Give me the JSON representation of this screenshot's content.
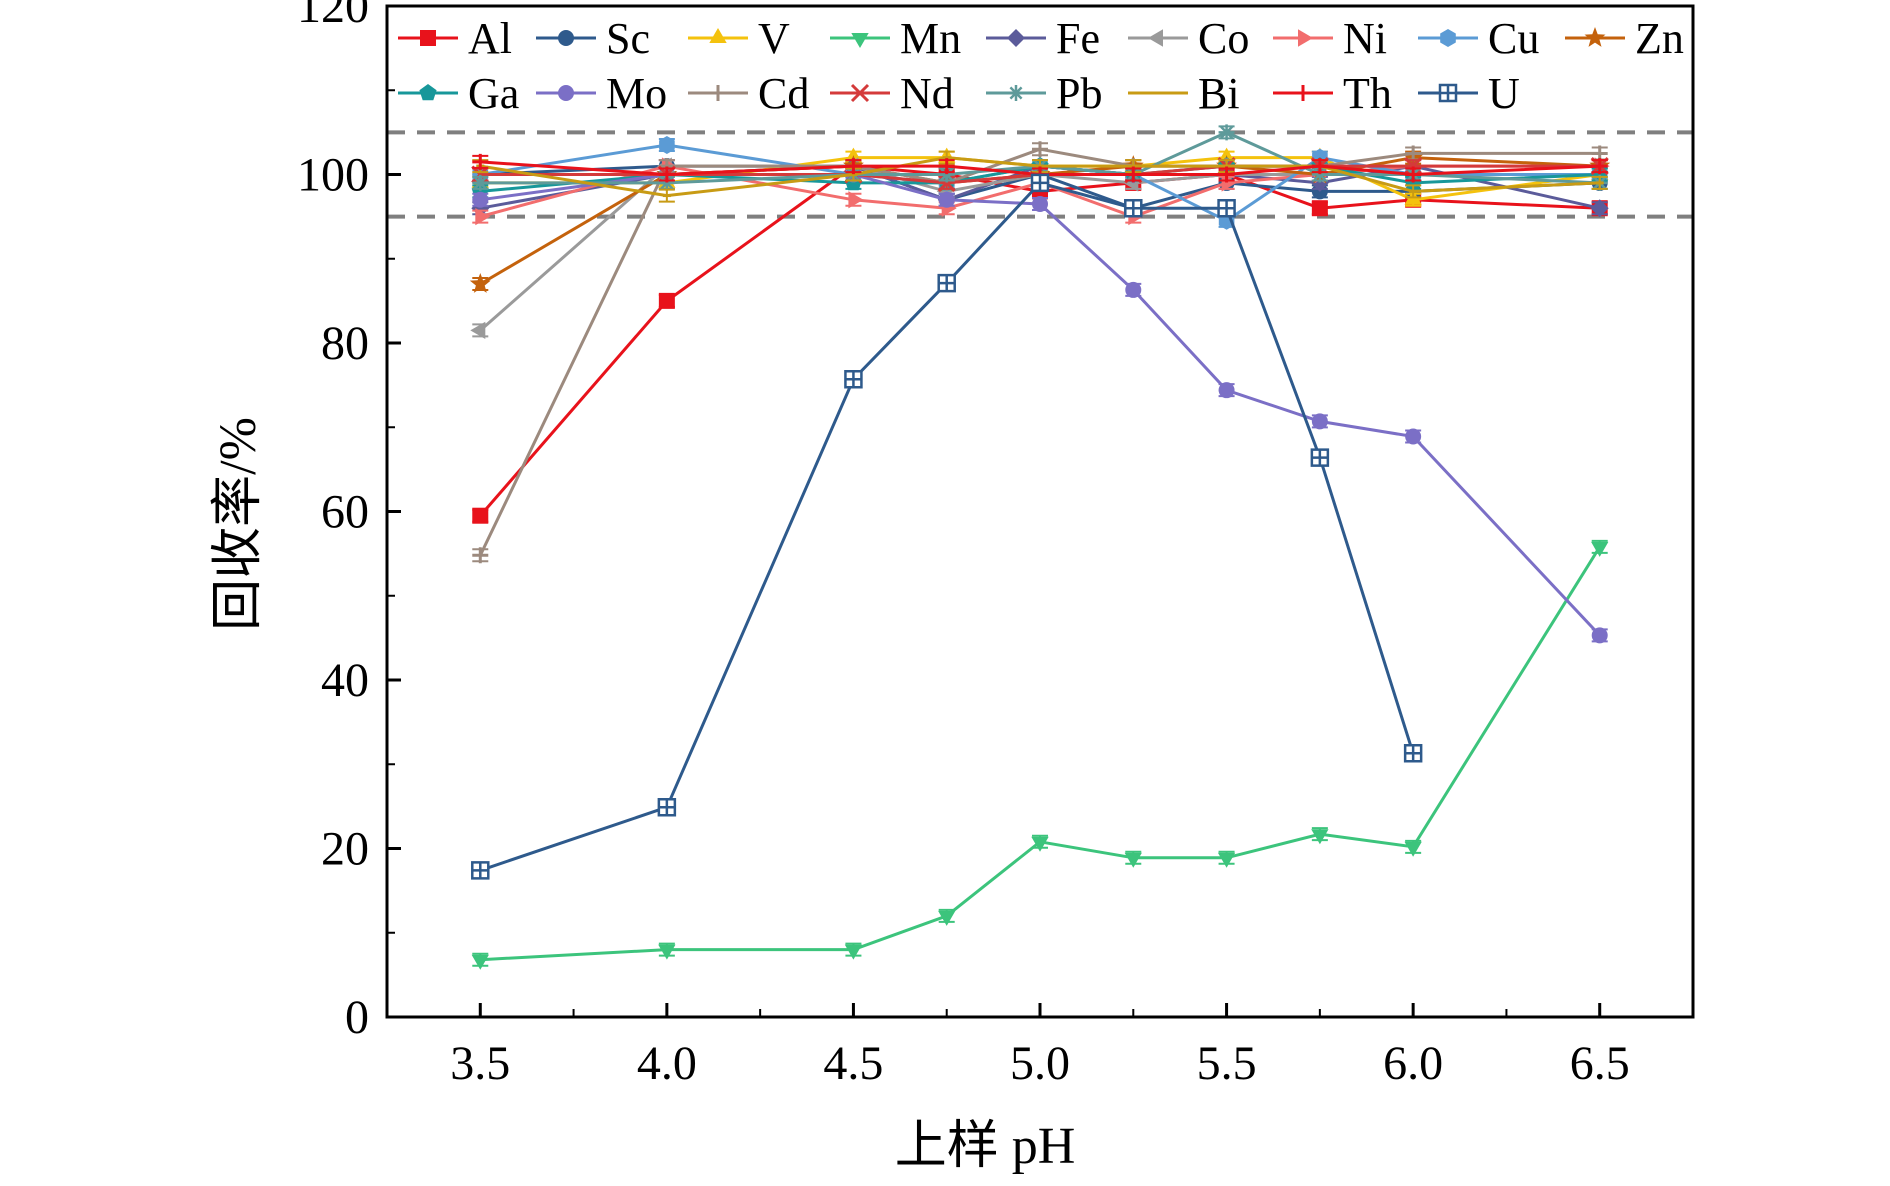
{
  "chart_data": {
    "type": "line",
    "xlabel": "上样 pH",
    "ylabel": "回收率/%",
    "xlim": [
      3.25,
      6.75
    ],
    "ylim": [
      0,
      120
    ],
    "x_ticks": [
      "3.5",
      "4.0",
      "4.5",
      "5.0",
      "5.5",
      "6.0",
      "6.5"
    ],
    "y_ticks": [
      "0",
      "20",
      "40",
      "60",
      "80",
      "100",
      "120"
    ],
    "reference_lines": [
      95,
      105
    ],
    "grid": false,
    "legend_position": "top",
    "series": [
      {
        "name": "Al",
        "color": "#e8121b",
        "marker": "square",
        "x": [
          3.5,
          4.0,
          4.5,
          4.75,
          5.0,
          5.25,
          5.5,
          5.75,
          6.0,
          6.5
        ],
        "y": [
          59.5,
          85,
          101,
          100,
          98,
          99,
          100,
          96,
          97,
          96
        ]
      },
      {
        "name": "Sc",
        "color": "#2e5a8c",
        "marker": "circle",
        "x": [
          3.5,
          4.0,
          4.5,
          4.75,
          5.0,
          5.25,
          5.5,
          5.75,
          6.0,
          6.5
        ],
        "y": [
          100,
          101,
          101,
          97,
          100,
          96,
          99,
          98,
          98,
          99
        ]
      },
      {
        "name": "V",
        "color": "#f4c20d",
        "marker": "triangle-up",
        "x": [
          3.5,
          4.0,
          4.5,
          4.75,
          5.0,
          5.25,
          5.5,
          5.75,
          6.0,
          6.5
        ],
        "y": [
          99,
          99,
          102,
          102,
          101,
          101,
          102,
          102,
          97,
          100
        ]
      },
      {
        "name": "Mn",
        "color": "#3cc47c",
        "marker": "triangle-down",
        "x": [
          3.5,
          4.0,
          4.5,
          4.75,
          5.0,
          5.25,
          5.5,
          5.75,
          6.0,
          6.5
        ],
        "y": [
          6.8,
          8,
          8,
          12,
          20.8,
          18.9,
          18.9,
          21.7,
          20.2,
          55.8
        ]
      },
      {
        "name": "Fe",
        "color": "#5b5b9a",
        "marker": "diamond",
        "x": [
          3.5,
          4.0,
          4.5,
          4.75,
          5.0,
          5.25,
          5.5,
          5.75,
          6.0,
          6.5
        ],
        "y": [
          96,
          100,
          101,
          97,
          101,
          100,
          100,
          99,
          101,
          96
        ]
      },
      {
        "name": "Co",
        "color": "#9a9a9a",
        "marker": "triangle-left",
        "x": [
          3.5,
          4.0,
          4.5,
          4.75,
          5.0,
          5.25,
          5.5,
          5.75,
          6.0,
          6.5
        ],
        "y": [
          81.5,
          101,
          101,
          98,
          100,
          99,
          100,
          100,
          100,
          100
        ]
      },
      {
        "name": "Ni",
        "color": "#f26d6d",
        "marker": "triangle-right",
        "x": [
          3.5,
          4.0,
          4.5,
          4.75,
          5.0,
          5.25,
          5.5,
          5.75,
          6.0,
          6.5
        ],
        "y": [
          95,
          101,
          97,
          96,
          99,
          95,
          99,
          100,
          101,
          101
        ]
      },
      {
        "name": "Cu",
        "color": "#5b9bd5",
        "marker": "hexagon",
        "x": [
          3.5,
          4.0,
          4.5,
          4.75,
          5.0,
          5.25,
          5.5,
          5.75,
          6.0,
          6.5
        ],
        "y": [
          100,
          103.5,
          100,
          99,
          101,
          100,
          94.5,
          102,
          100,
          100
        ]
      },
      {
        "name": "Zn",
        "color": "#c4620c",
        "marker": "star",
        "x": [
          3.5,
          4.0,
          4.5,
          4.75,
          5.0,
          5.25,
          5.5,
          5.75,
          6.0,
          6.5
        ],
        "y": [
          87,
          100,
          101,
          99,
          100,
          101,
          101,
          100,
          102,
          101
        ]
      },
      {
        "name": "Ga",
        "color": "#17979a",
        "marker": "pentagon",
        "x": [
          3.5,
          4.0,
          4.5,
          4.75,
          5.0,
          5.25,
          5.5,
          5.75,
          6.0,
          6.5
        ],
        "y": [
          98,
          100,
          99,
          99,
          101,
          100,
          101,
          101,
          99,
          100
        ]
      },
      {
        "name": "Mo",
        "color": "#7b6fc6",
        "marker": "circle",
        "x": [
          3.5,
          4.0,
          4.5,
          4.75,
          5.0,
          5.25,
          5.5,
          5.75,
          6.0,
          6.5
        ],
        "y": [
          97,
          100,
          100,
          97,
          96.5,
          86.3,
          74.4,
          70.7,
          68.9,
          45.3
        ]
      },
      {
        "name": "Cd",
        "color": "#9c8a7e",
        "marker": "plus",
        "x": [
          3.5,
          4.0,
          4.5,
          4.75,
          5.0,
          5.25,
          5.5,
          5.75,
          6.0,
          6.5
        ],
        "y": [
          54.8,
          101,
          101,
          99,
          103,
          101,
          101,
          101,
          102.5,
          102.5
        ]
      },
      {
        "name": "Nd",
        "color": "#d43a3a",
        "marker": "x",
        "x": [
          3.5,
          4.0,
          4.5,
          4.75,
          5.0,
          5.25,
          5.5,
          5.75,
          6.0,
          6.5
        ],
        "y": [
          100,
          100,
          100,
          99,
          100,
          100,
          101,
          101,
          101,
          101
        ]
      },
      {
        "name": "Pb",
        "color": "#5e9a9a",
        "marker": "asterisk",
        "x": [
          3.5,
          4.0,
          4.5,
          4.75,
          5.0,
          5.25,
          5.5,
          5.75,
          6.0,
          6.5
        ],
        "y": [
          99,
          99,
          100,
          100,
          101,
          100,
          105,
          100,
          100,
          99
        ]
      },
      {
        "name": "Bi",
        "color": "#c89b14",
        "marker": "line",
        "x": [
          3.5,
          4.0,
          4.5,
          4.75,
          5.0,
          5.25,
          5.5,
          5.75,
          6.0,
          6.5
        ],
        "y": [
          101,
          97.5,
          100,
          102,
          101,
          101,
          101,
          101,
          98,
          99
        ]
      },
      {
        "name": "Th",
        "color": "#e8121b",
        "marker": "plus",
        "x": [
          3.5,
          4.0,
          4.5,
          4.75,
          5.0,
          5.25,
          5.5,
          5.75,
          6.0,
          6.5
        ],
        "y": [
          101.5,
          100,
          101,
          101,
          100,
          100,
          100,
          101,
          100,
          101
        ]
      },
      {
        "name": "U",
        "color": "#2e5a8c",
        "marker": "square-plus",
        "x": [
          3.5,
          4.0,
          4.5,
          4.75,
          5.0,
          5.25,
          5.5,
          5.75,
          6.0
        ],
        "y": [
          17.4,
          24.9,
          75.7,
          87.1,
          99,
          96,
          96,
          66.4,
          31.3
        ]
      }
    ]
  }
}
